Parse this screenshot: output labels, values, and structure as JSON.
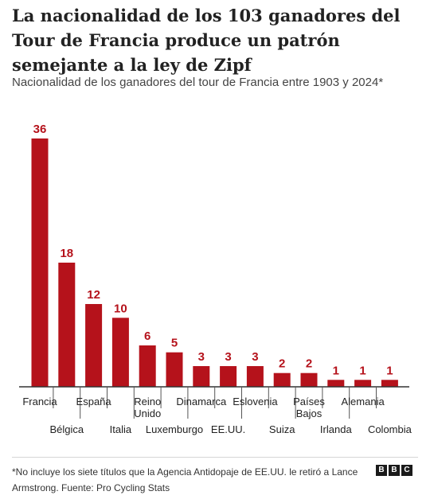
{
  "header": {
    "title": "La nacionalidad de los 103 ganadores del Tour de Francia produce un patrón semejante a la ley de Zipf",
    "subtitle": "Nacionalidad de los ganadores del tour de Francia entre 1903 y 2024*"
  },
  "chart_data": {
    "type": "bar",
    "title": "",
    "xlabel": "",
    "ylabel": "",
    "categories": [
      "Francia",
      "Bélgica",
      "España",
      "Italia",
      "Reino Unido",
      "Luxemburgo",
      "Dinamarca",
      "EE.UU.",
      "Eslovenia",
      "Suiza",
      "Países Bajos",
      "Irlanda",
      "Alemania",
      "Colombia"
    ],
    "values": [
      36,
      18,
      12,
      10,
      6,
      5,
      3,
      3,
      3,
      2,
      2,
      1,
      1,
      1
    ],
    "value_labels": [
      "36",
      "18",
      "12",
      "10",
      "6",
      "5",
      "3",
      "3",
      "3",
      "2",
      "2",
      "1",
      "1",
      "1"
    ],
    "label_lines": [
      [
        "Francia"
      ],
      [
        "Bélgica"
      ],
      [
        "España"
      ],
      [
        "Italia"
      ],
      [
        "Reino",
        "Unido"
      ],
      [
        "Luxemburgo"
      ],
      [
        "Dinamarca"
      ],
      [
        "EE.UU."
      ],
      [
        "Eslovenia"
      ],
      [
        "Suiza"
      ],
      [
        "Países",
        "Bajos"
      ],
      [
        "Irlanda"
      ],
      [
        "Alemania"
      ],
      [
        "Colombia"
      ]
    ],
    "ylim": [
      0,
      36
    ],
    "grid": false,
    "legend": false,
    "bar_color": "#b5121b"
  },
  "footer": {
    "note": "*No incluye los siete títulos que la Agencia Antidopaje de EE.UU. le retiró a Lance Armstrong. Fuente: Pro Cycling Stats",
    "logo": [
      "B",
      "B",
      "C"
    ]
  }
}
